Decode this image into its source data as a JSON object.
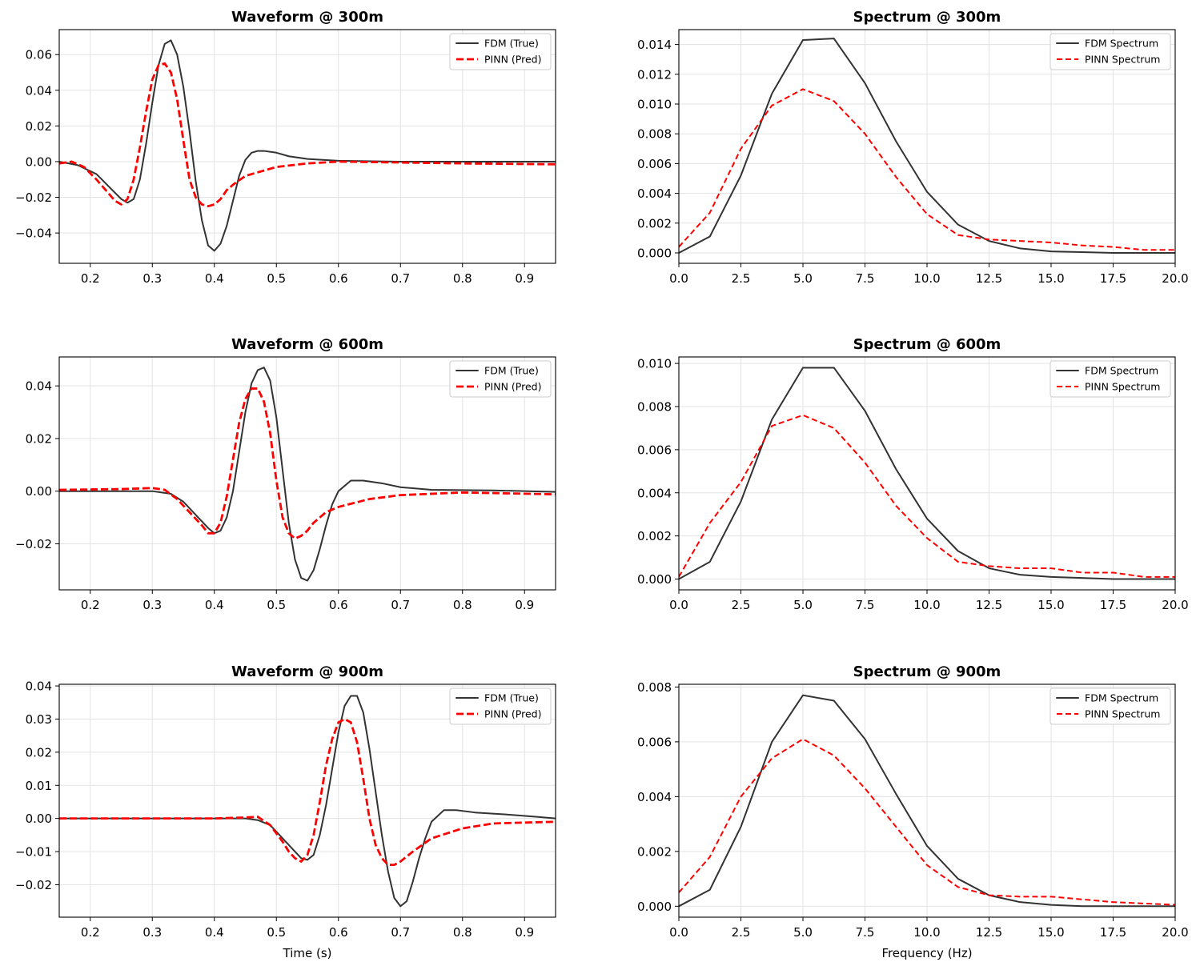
{
  "colors": {
    "true_line": "#333333",
    "pred_line": "#ff0000"
  },
  "chart_data": [
    {
      "type": "line",
      "title": "Waveform @ 300m",
      "xlabel": "",
      "ylabel": "",
      "xlim": [
        0.15,
        0.95
      ],
      "ylim": [
        -0.057,
        0.074
      ],
      "xticks": [
        0.2,
        0.3,
        0.4,
        0.5,
        0.6,
        0.7,
        0.8,
        0.9
      ],
      "xtick_labels": [
        "0.2",
        "0.3",
        "0.4",
        "0.5",
        "0.6",
        "0.7",
        "0.8",
        "0.9"
      ],
      "yticks": [
        -0.04,
        -0.02,
        0.0,
        0.02,
        0.04,
        0.06
      ],
      "ytick_labels": [
        "−0.04",
        "−0.02",
        "0.00",
        "0.02",
        "0.04",
        "0.06"
      ],
      "grid": true,
      "legend_position": "top-right",
      "series": [
        {
          "name": "FDM (True)",
          "style": "solid",
          "x": [
            0.15,
            0.18,
            0.21,
            0.23,
            0.25,
            0.26,
            0.27,
            0.28,
            0.29,
            0.3,
            0.31,
            0.32,
            0.33,
            0.34,
            0.35,
            0.36,
            0.37,
            0.38,
            0.39,
            0.4,
            0.41,
            0.42,
            0.43,
            0.44,
            0.45,
            0.46,
            0.47,
            0.48,
            0.5,
            0.52,
            0.55,
            0.6,
            0.7,
            0.8,
            0.95
          ],
          "y": [
            0.0,
            -0.002,
            -0.007,
            -0.014,
            -0.021,
            -0.023,
            -0.021,
            -0.01,
            0.01,
            0.033,
            0.054,
            0.066,
            0.068,
            0.06,
            0.042,
            0.017,
            -0.011,
            -0.033,
            -0.047,
            -0.05,
            -0.046,
            -0.036,
            -0.022,
            -0.008,
            0.001,
            0.005,
            0.006,
            0.006,
            0.005,
            0.003,
            0.0015,
            0.0005,
            0.0,
            0.0,
            0.0
          ]
        },
        {
          "name": "PINN (Pred)",
          "style": "dashed",
          "x": [
            0.15,
            0.17,
            0.19,
            0.21,
            0.23,
            0.24,
            0.25,
            0.26,
            0.27,
            0.28,
            0.29,
            0.3,
            0.31,
            0.32,
            0.33,
            0.34,
            0.35,
            0.36,
            0.37,
            0.38,
            0.39,
            0.4,
            0.41,
            0.42,
            0.43,
            0.45,
            0.47,
            0.5,
            0.55,
            0.6,
            0.7,
            0.8,
            0.95
          ],
          "y": [
            -0.001,
            0.0,
            -0.003,
            -0.01,
            -0.018,
            -0.022,
            -0.024,
            -0.021,
            -0.01,
            0.008,
            0.028,
            0.046,
            0.054,
            0.055,
            0.05,
            0.035,
            0.012,
            -0.01,
            -0.02,
            -0.024,
            -0.025,
            -0.024,
            -0.021,
            -0.016,
            -0.013,
            -0.008,
            -0.006,
            -0.003,
            -0.001,
            0.0,
            -0.0005,
            -0.001,
            -0.0015
          ]
        }
      ]
    },
    {
      "type": "line",
      "title": "Spectrum @ 300m",
      "xlabel": "",
      "ylabel": "",
      "xlim": [
        0,
        20
      ],
      "ylim": [
        -0.0007,
        0.015
      ],
      "xticks": [
        0,
        2.5,
        5,
        7.5,
        10,
        12.5,
        15,
        17.5,
        20
      ],
      "xtick_labels": [
        "0.0",
        "2.5",
        "5.0",
        "7.5",
        "10.0",
        "12.5",
        "15.0",
        "17.5",
        "20.0"
      ],
      "yticks": [
        0,
        0.002,
        0.004,
        0.006,
        0.008,
        0.01,
        0.012,
        0.014
      ],
      "ytick_labels": [
        "0.000",
        "0.002",
        "0.004",
        "0.006",
        "0.008",
        "0.010",
        "0.012",
        "0.014"
      ],
      "grid": true,
      "legend_position": "top-right",
      "series": [
        {
          "name": "FDM Spectrum",
          "style": "solid",
          "x": [
            0,
            1.25,
            2.5,
            3.75,
            5,
            6.25,
            7.5,
            8.75,
            10,
            11.25,
            12.5,
            13.75,
            15,
            16.25,
            17.5,
            18.75,
            20
          ],
          "y": [
            0.0,
            0.0011,
            0.0052,
            0.0107,
            0.0143,
            0.0144,
            0.0114,
            0.0075,
            0.0041,
            0.0019,
            0.0008,
            0.0003,
            0.0001,
            5e-05,
            0.0,
            0.0,
            0.0
          ]
        },
        {
          "name": "PINN Spectrum",
          "style": "dashed",
          "x": [
            0,
            1.25,
            2.5,
            3.75,
            5,
            6.25,
            7.5,
            8.75,
            10,
            11.25,
            12.5,
            13.75,
            15,
            16.25,
            17.5,
            18.75,
            20
          ],
          "y": [
            0.0004,
            0.0027,
            0.007,
            0.0099,
            0.011,
            0.0102,
            0.008,
            0.0051,
            0.0026,
            0.0012,
            0.0009,
            0.0008,
            0.0007,
            0.0005,
            0.0004,
            0.0002,
            0.0002
          ]
        }
      ]
    },
    {
      "type": "line",
      "title": "Waveform @ 600m",
      "xlabel": "",
      "ylabel": "",
      "xlim": [
        0.15,
        0.95
      ],
      "ylim": [
        -0.0375,
        0.051
      ],
      "xticks": [
        0.2,
        0.3,
        0.4,
        0.5,
        0.6,
        0.7,
        0.8,
        0.9
      ],
      "xtick_labels": [
        "0.2",
        "0.3",
        "0.4",
        "0.5",
        "0.6",
        "0.7",
        "0.8",
        "0.9"
      ],
      "yticks": [
        -0.02,
        0.0,
        0.02,
        0.04
      ],
      "ytick_labels": [
        "−0.02",
        "0.00",
        "0.02",
        "0.04"
      ],
      "grid": true,
      "legend_position": "top-right",
      "series": [
        {
          "name": "FDM (True)",
          "style": "solid",
          "x": [
            0.15,
            0.3,
            0.33,
            0.35,
            0.37,
            0.39,
            0.4,
            0.41,
            0.42,
            0.43,
            0.44,
            0.45,
            0.46,
            0.47,
            0.48,
            0.49,
            0.5,
            0.51,
            0.52,
            0.53,
            0.54,
            0.55,
            0.56,
            0.57,
            0.58,
            0.59,
            0.6,
            0.62,
            0.64,
            0.67,
            0.7,
            0.75,
            0.85,
            0.95
          ],
          "y": [
            0.0,
            0.0,
            -0.001,
            -0.004,
            -0.009,
            -0.014,
            -0.016,
            -0.015,
            -0.01,
            0.0,
            0.015,
            0.03,
            0.041,
            0.046,
            0.047,
            0.042,
            0.028,
            0.008,
            -0.012,
            -0.026,
            -0.033,
            -0.034,
            -0.03,
            -0.022,
            -0.013,
            -0.005,
            0.0,
            0.004,
            0.004,
            0.003,
            0.0015,
            0.0005,
            0.0003,
            -0.0003
          ]
        },
        {
          "name": "PINN (Pred)",
          "style": "dashed",
          "x": [
            0.15,
            0.25,
            0.3,
            0.32,
            0.34,
            0.36,
            0.38,
            0.39,
            0.4,
            0.41,
            0.42,
            0.43,
            0.44,
            0.45,
            0.46,
            0.47,
            0.48,
            0.49,
            0.5,
            0.51,
            0.52,
            0.53,
            0.54,
            0.55,
            0.56,
            0.58,
            0.6,
            0.65,
            0.7,
            0.8,
            0.95
          ],
          "y": [
            0.0005,
            0.0008,
            0.0012,
            0.0005,
            -0.003,
            -0.008,
            -0.013,
            -0.016,
            -0.016,
            -0.012,
            -0.002,
            0.012,
            0.026,
            0.035,
            0.039,
            0.039,
            0.034,
            0.022,
            0.004,
            -0.01,
            -0.016,
            -0.018,
            -0.017,
            -0.015,
            -0.012,
            -0.008,
            -0.006,
            -0.003,
            -0.0015,
            -0.0005,
            -0.0012
          ]
        }
      ]
    },
    {
      "type": "line",
      "title": "Spectrum @ 600m",
      "xlabel": "",
      "ylabel": "",
      "xlim": [
        0,
        20
      ],
      "ylim": [
        -0.0005,
        0.0103
      ],
      "xticks": [
        0,
        2.5,
        5,
        7.5,
        10,
        12.5,
        15,
        17.5,
        20
      ],
      "xtick_labels": [
        "0.0",
        "2.5",
        "5.0",
        "7.5",
        "10.0",
        "12.5",
        "15.0",
        "17.5",
        "20.0"
      ],
      "yticks": [
        0,
        0.002,
        0.004,
        0.006,
        0.008,
        0.01
      ],
      "ytick_labels": [
        "0.000",
        "0.002",
        "0.004",
        "0.006",
        "0.008",
        "0.010"
      ],
      "grid": true,
      "legend_position": "top-right",
      "series": [
        {
          "name": "FDM Spectrum",
          "style": "solid",
          "x": [
            0,
            1.25,
            2.5,
            3.75,
            5,
            6.25,
            7.5,
            8.75,
            10,
            11.25,
            12.5,
            13.75,
            15,
            16.25,
            17.5,
            18.75,
            20
          ],
          "y": [
            0.0,
            0.0008,
            0.0036,
            0.0074,
            0.0098,
            0.0098,
            0.0078,
            0.0051,
            0.0028,
            0.0013,
            0.0005,
            0.0002,
            0.0001,
            5e-05,
            0.0,
            0.0,
            0.0
          ]
        },
        {
          "name": "PINN Spectrum",
          "style": "dashed",
          "x": [
            0,
            1.25,
            2.5,
            3.75,
            5,
            6.25,
            7.5,
            8.75,
            10,
            11.25,
            12.5,
            13.75,
            15,
            16.25,
            17.5,
            18.75,
            20
          ],
          "y": [
            0.0001,
            0.0026,
            0.0045,
            0.0071,
            0.0076,
            0.007,
            0.0054,
            0.0034,
            0.0019,
            0.0008,
            0.0006,
            0.0005,
            0.0005,
            0.0003,
            0.0003,
            0.0001,
            0.0001
          ]
        }
      ]
    },
    {
      "type": "line",
      "title": "Waveform @ 900m",
      "xlabel": "Time (s)",
      "ylabel": "",
      "xlim": [
        0.15,
        0.95
      ],
      "ylim": [
        -0.0298,
        0.0405
      ],
      "xticks": [
        0.2,
        0.3,
        0.4,
        0.5,
        0.6,
        0.7,
        0.8,
        0.9
      ],
      "xtick_labels": [
        "0.2",
        "0.3",
        "0.4",
        "0.5",
        "0.6",
        "0.7",
        "0.8",
        "0.9"
      ],
      "yticks": [
        -0.02,
        -0.01,
        0.0,
        0.01,
        0.02,
        0.03,
        0.04
      ],
      "ytick_labels": [
        "−0.02",
        "−0.01",
        "0.00",
        "0.01",
        "0.02",
        "0.03",
        "0.04"
      ],
      "grid": true,
      "legend_position": "top-right",
      "series": [
        {
          "name": "FDM (True)",
          "style": "solid",
          "x": [
            0.15,
            0.45,
            0.47,
            0.49,
            0.51,
            0.53,
            0.54,
            0.55,
            0.56,
            0.57,
            0.58,
            0.59,
            0.6,
            0.61,
            0.62,
            0.63,
            0.64,
            0.65,
            0.66,
            0.67,
            0.68,
            0.69,
            0.7,
            0.71,
            0.72,
            0.73,
            0.74,
            0.75,
            0.77,
            0.79,
            0.82,
            0.87,
            0.92,
            0.95
          ],
          "y": [
            0.0,
            0.0,
            -0.0005,
            -0.002,
            -0.006,
            -0.01,
            -0.012,
            -0.0125,
            -0.011,
            -0.005,
            0.004,
            0.015,
            0.026,
            0.034,
            0.037,
            0.037,
            0.032,
            0.021,
            0.008,
            -0.005,
            -0.016,
            -0.024,
            -0.0265,
            -0.025,
            -0.019,
            -0.012,
            -0.006,
            -0.001,
            0.0025,
            0.0025,
            0.0018,
            0.0012,
            0.0005,
            0.0
          ]
        },
        {
          "name": "PINN (Pred)",
          "style": "dashed",
          "x": [
            0.15,
            0.4,
            0.45,
            0.47,
            0.49,
            0.51,
            0.52,
            0.53,
            0.54,
            0.55,
            0.56,
            0.57,
            0.58,
            0.59,
            0.6,
            0.61,
            0.62,
            0.63,
            0.64,
            0.65,
            0.66,
            0.67,
            0.68,
            0.69,
            0.7,
            0.72,
            0.75,
            0.8,
            0.85,
            0.95
          ],
          "y": [
            0.0,
            0.0,
            0.0003,
            0.0005,
            -0.002,
            -0.007,
            -0.01,
            -0.012,
            -0.013,
            -0.011,
            -0.005,
            0.005,
            0.016,
            0.024,
            0.029,
            0.03,
            0.029,
            0.023,
            0.012,
            0.0,
            -0.008,
            -0.012,
            -0.014,
            -0.014,
            -0.013,
            -0.01,
            -0.006,
            -0.003,
            -0.0015,
            -0.001
          ]
        }
      ]
    },
    {
      "type": "line",
      "title": "Spectrum @ 900m",
      "xlabel": "Frequency (Hz)",
      "ylabel": "",
      "xlim": [
        0,
        20
      ],
      "ylim": [
        -0.0004,
        0.0081
      ],
      "xticks": [
        0,
        2.5,
        5,
        7.5,
        10,
        12.5,
        15,
        17.5,
        20
      ],
      "xtick_labels": [
        "0.0",
        "2.5",
        "5.0",
        "7.5",
        "10.0",
        "12.5",
        "15.0",
        "17.5",
        "20.0"
      ],
      "yticks": [
        0,
        0.002,
        0.004,
        0.006,
        0.008
      ],
      "ytick_labels": [
        "0.000",
        "0.002",
        "0.004",
        "0.006",
        "0.008"
      ],
      "grid": true,
      "legend_position": "top-right",
      "series": [
        {
          "name": "FDM Spectrum",
          "style": "solid",
          "x": [
            0,
            1.25,
            2.5,
            3.75,
            5,
            6.25,
            7.5,
            8.75,
            10,
            11.25,
            12.5,
            13.75,
            15,
            16.25,
            17.5,
            18.75,
            20
          ],
          "y": [
            0.0,
            0.0006,
            0.0029,
            0.006,
            0.0077,
            0.0075,
            0.0061,
            0.0041,
            0.0022,
            0.001,
            0.0004,
            0.00015,
            5e-05,
            0.0,
            0.0,
            0.0,
            0.0
          ]
        },
        {
          "name": "PINN Spectrum",
          "style": "dashed",
          "x": [
            0,
            1.25,
            2.5,
            3.75,
            5,
            6.25,
            7.5,
            8.75,
            10,
            11.25,
            12.5,
            13.75,
            15,
            16.25,
            17.5,
            18.75,
            20
          ],
          "y": [
            0.0005,
            0.0018,
            0.004,
            0.0054,
            0.0061,
            0.0055,
            0.0043,
            0.0029,
            0.0015,
            0.0007,
            0.0004,
            0.00035,
            0.00035,
            0.00025,
            0.00015,
            0.0001,
            5e-05
          ]
        }
      ]
    }
  ]
}
